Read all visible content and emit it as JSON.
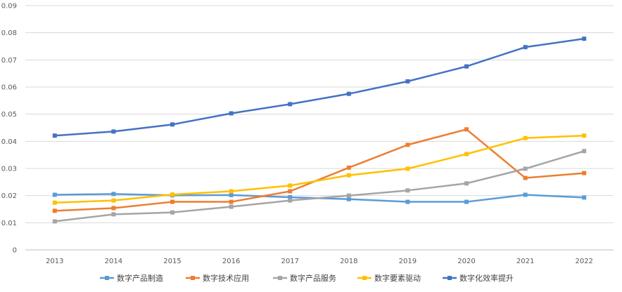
{
  "chart_data": {
    "type": "line",
    "title": "",
    "xlabel": "",
    "ylabel": "",
    "x": [
      "2013",
      "2014",
      "2015",
      "2016",
      "2017",
      "2018",
      "2019",
      "2020",
      "2021",
      "2022"
    ],
    "ylim": [
      0,
      0.09
    ],
    "yticks": [
      "0",
      "0.01",
      "0.02",
      "0.03",
      "0.04",
      "0.05",
      "0.06",
      "0.07",
      "0.08",
      "0.09"
    ],
    "grid": true,
    "legend_position": "bottom",
    "marker": "square",
    "series": [
      {
        "name": "数字产品制造",
        "color": "#5B9BD5",
        "values": [
          0.0203,
          0.0206,
          0.0201,
          0.0202,
          0.0194,
          0.0187,
          0.0177,
          0.0177,
          0.0203,
          0.0193
        ]
      },
      {
        "name": "数字技术应用",
        "color": "#ED7D31",
        "values": [
          0.0144,
          0.0154,
          0.0177,
          0.0177,
          0.0216,
          0.0303,
          0.0387,
          0.0444,
          0.0265,
          0.0283
        ]
      },
      {
        "name": "数字产品服务",
        "color": "#A5A5A5",
        "values": [
          0.0105,
          0.0131,
          0.0138,
          0.0159,
          0.0182,
          0.02,
          0.0219,
          0.0245,
          0.0299,
          0.0364
        ]
      },
      {
        "name": "数字要素驱动",
        "color": "#FFC000",
        "values": [
          0.0174,
          0.0182,
          0.0204,
          0.0216,
          0.0237,
          0.0275,
          0.0299,
          0.0353,
          0.0412,
          0.0421
        ]
      },
      {
        "name": "数字化效率提升",
        "color": "#4472C4",
        "values": [
          0.0421,
          0.0436,
          0.0462,
          0.0503,
          0.0537,
          0.0575,
          0.0621,
          0.0676,
          0.0747,
          0.0778
        ]
      }
    ]
  }
}
